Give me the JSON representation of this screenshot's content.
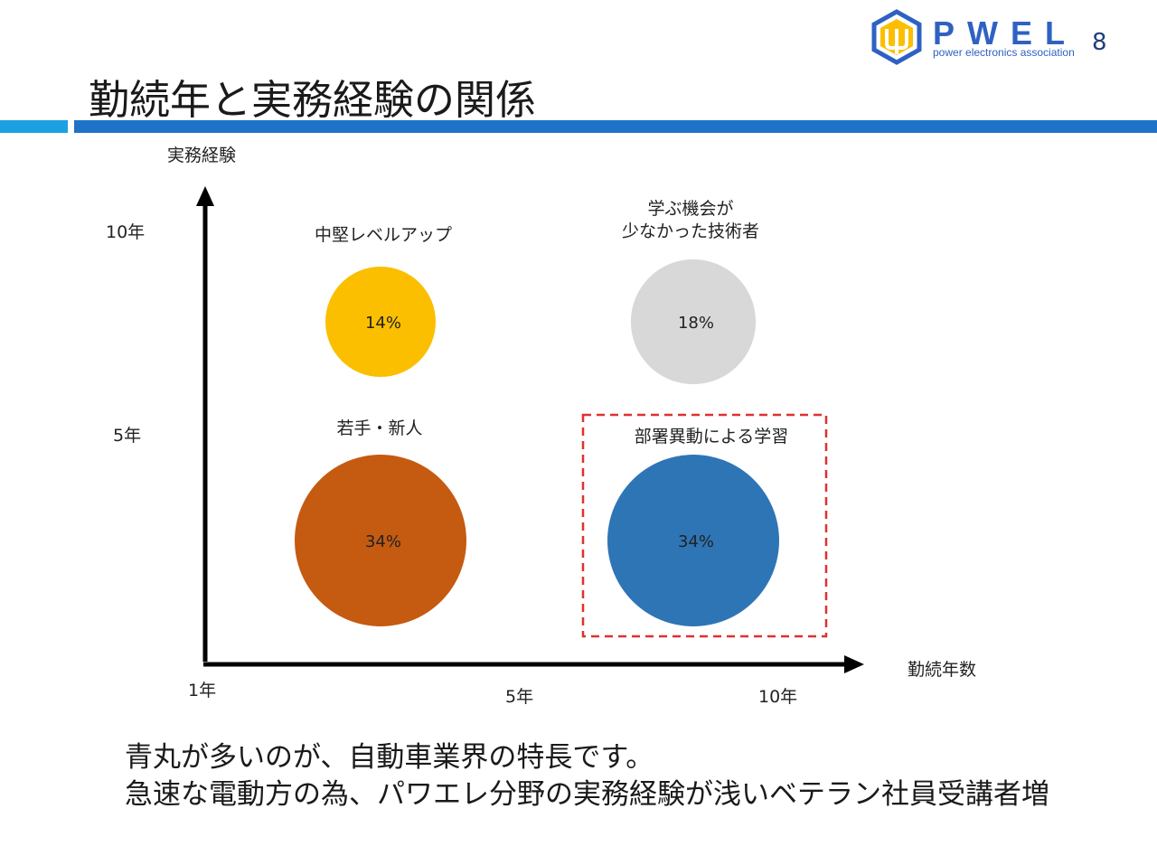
{
  "header": {
    "page_number": "8",
    "title": "勤続年と実務経験の関係",
    "logo_word": "PWEL",
    "logo_tagline": "power electronics association"
  },
  "colors": {
    "accent_bar_left": "#1ba1e2",
    "accent_bar_main": "#1f72c7",
    "logo": "#2f61c2",
    "highlight_box": "#e03030"
  },
  "chart_data": {
    "type": "scatter",
    "title": "",
    "xlabel": "勤続年数",
    "ylabel": "実務経験",
    "x_ticks": [
      "1年",
      "5年",
      "10年"
    ],
    "y_ticks": [
      "10年",
      "5年"
    ],
    "grid": false,
    "legend": "none",
    "bubbles": [
      {
        "label": "中堅レベルアップ",
        "value_label": "14%",
        "value": 14,
        "color": "#fbbf00",
        "text_color": "#222222",
        "highlighted": false
      },
      {
        "label": "学ぶ機会が\n少なかった技術者",
        "value_label": "18%",
        "value": 18,
        "color": "#d8d8d8",
        "text_color": "#222222",
        "highlighted": false
      },
      {
        "label": "若手・新人",
        "value_label": "34%",
        "value": 34,
        "color": "#c55a11",
        "text_color": "#222222",
        "highlighted": false
      },
      {
        "label": "部署異動による学習",
        "value_label": "34%",
        "value": 34,
        "color": "#2e75b6",
        "text_color": "#222222",
        "highlighted": true
      }
    ]
  },
  "footer": {
    "line1": "青丸が多いのが、自動車業界の特長です。",
    "line2": "急速な電動方の為、パワエレ分野の実務経験が浅いベテラン社員受講者増"
  }
}
